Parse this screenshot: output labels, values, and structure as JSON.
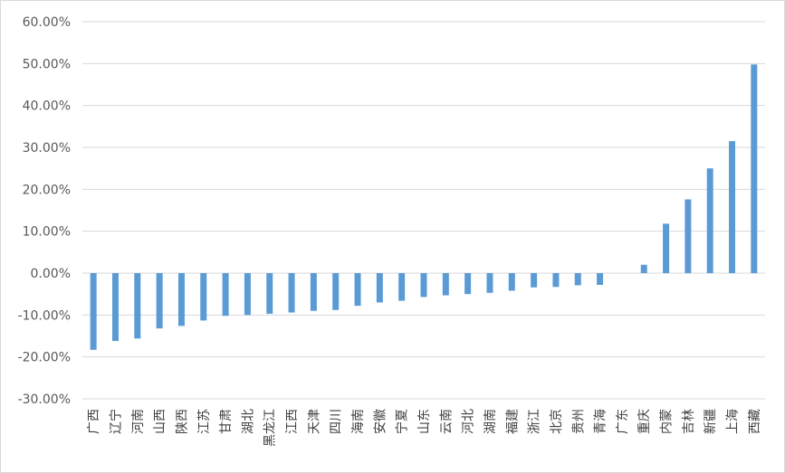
{
  "chart_data": {
    "type": "bar",
    "title": "",
    "xlabel": "",
    "ylabel": "",
    "ylim": [
      -30,
      60
    ],
    "y_tick_step": 10,
    "y_tick_format": "percent_2dp",
    "grid": true,
    "legend": "none",
    "bar_color": "#5b9bd5",
    "grid_color": "#d9d9d9",
    "categories": [
      "广西",
      "辽宁",
      "河南",
      "山西",
      "陕西",
      "江苏",
      "甘肃",
      "湖北",
      "黑龙江",
      "江西",
      "天津",
      "四川",
      "海南",
      "安徽",
      "宁夏",
      "山东",
      "云南",
      "河北",
      "湖南",
      "福建",
      "浙江",
      "北京",
      "贵州",
      "青海",
      "广东",
      "重庆",
      "内蒙",
      "吉林",
      "新疆",
      "上海",
      "西藏"
    ],
    "values": [
      -18.3,
      -16.2,
      -15.6,
      -13.2,
      -12.6,
      -11.3,
      -10.2,
      -10.0,
      -9.7,
      -9.4,
      -9.0,
      -8.8,
      -7.8,
      -7.0,
      -6.6,
      -5.7,
      -5.3,
      -5.0,
      -4.7,
      -4.2,
      -3.4,
      -3.3,
      -2.9,
      -2.8,
      0.0,
      2.0,
      11.8,
      17.6,
      25.0,
      31.5,
      49.8
    ],
    "y_ticks": [
      "60.00%",
      "50.00%",
      "40.00%",
      "30.00%",
      "20.00%",
      "10.00%",
      "0.00%",
      "-10.00%",
      "-20.00%",
      "-30.00%"
    ]
  }
}
